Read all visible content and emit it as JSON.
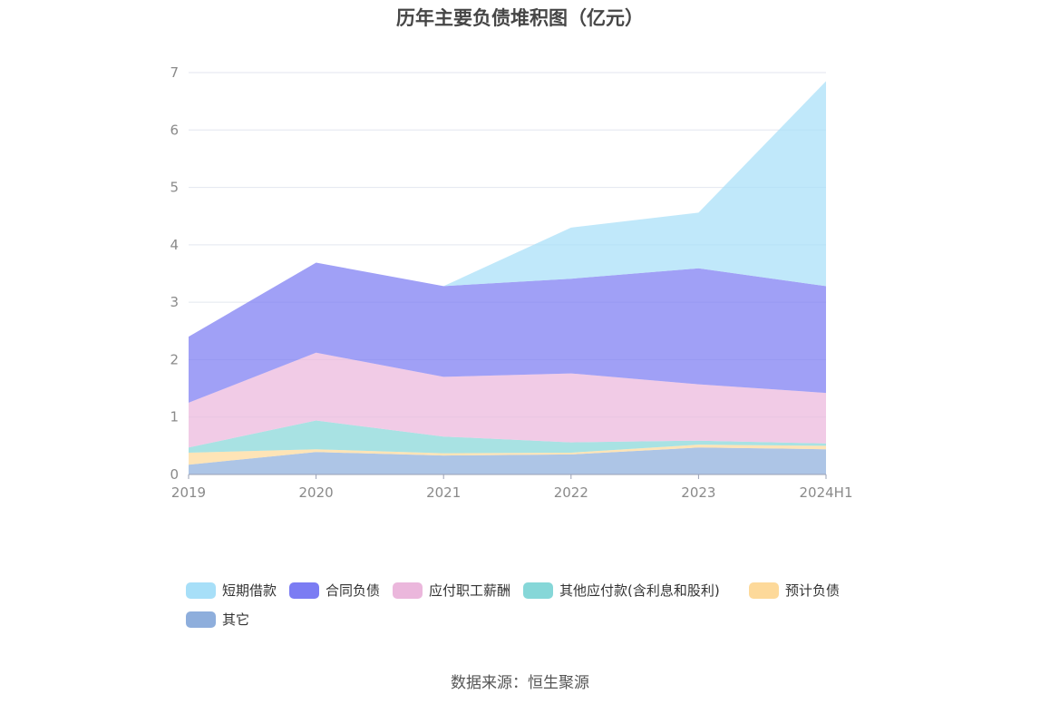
{
  "chart_data": {
    "type": "area",
    "title": "历年主要负债堆积图（亿元）",
    "stacked": true,
    "x": [
      "2019",
      "2020",
      "2021",
      "2022",
      "2023",
      "2024H1"
    ],
    "ylim": [
      0,
      7
    ],
    "yticks": [
      0,
      1,
      2,
      3,
      4,
      5,
      6,
      7
    ],
    "grid": true,
    "legend_position": "bottom",
    "series": [
      {
        "name": "其它",
        "color": "#8eaedc",
        "values": [
          0.17,
          0.39,
          0.33,
          0.35,
          0.47,
          0.44
        ]
      },
      {
        "name": "预计负债",
        "color": "#fdd99a",
        "values": [
          0.21,
          0.05,
          0.04,
          0.03,
          0.05,
          0.06
        ]
      },
      {
        "name": "其他应付款(含利息和股利)",
        "color": "#86d7d8",
        "values": [
          0.09,
          0.5,
          0.29,
          0.18,
          0.07,
          0.04
        ]
      },
      {
        "name": "应付职工薪酬",
        "color": "#ebb7dc",
        "values": [
          0.78,
          1.18,
          1.04,
          1.2,
          0.98,
          0.88
        ]
      },
      {
        "name": "合同负债",
        "color": "#7b7cf3",
        "values": [
          1.15,
          1.57,
          1.58,
          1.65,
          2.02,
          1.86
        ]
      },
      {
        "name": "短期借款",
        "color": "#a7dff8",
        "values": [
          0.0,
          0.0,
          0.0,
          0.89,
          0.97,
          3.57
        ]
      }
    ]
  },
  "legend_order": [
    "短期借款",
    "合同负债",
    "应付职工薪酬",
    "其他应付款(含利息和股利)",
    "预计负债",
    "其它"
  ],
  "source": "数据来源：恒生聚源"
}
